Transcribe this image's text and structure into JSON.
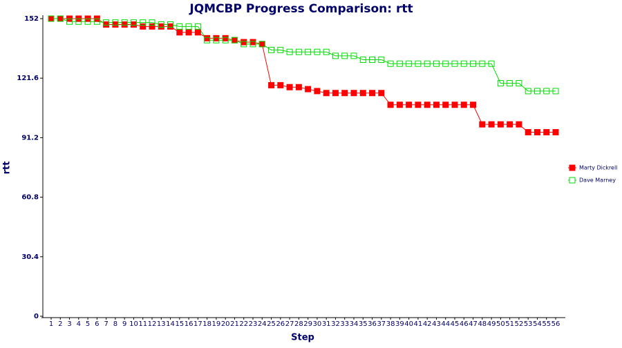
{
  "chart_data": {
    "type": "line",
    "title": "JQMCBP Progress Comparison: rtt",
    "xlabel": "Step",
    "ylabel": "rtt",
    "categories": [
      "1",
      "2",
      "3",
      "4",
      "5",
      "6",
      "7",
      "8",
      "9",
      "10",
      "11",
      "12",
      "13",
      "14",
      "15",
      "16",
      "17",
      "18",
      "19",
      "20",
      "21",
      "22",
      "23",
      "24",
      "25",
      "26",
      "27",
      "28",
      "29",
      "30",
      "31",
      "32",
      "33",
      "34",
      "35",
      "36",
      "37",
      "38",
      "39",
      "40",
      "41",
      "42",
      "43",
      "44",
      "45",
      "46",
      "47",
      "48",
      "49",
      "50",
      "51",
      "52",
      "53",
      "54",
      "55",
      "56"
    ],
    "series": [
      {
        "name": "Marty Dickrell",
        "color": "#ff0000",
        "filled": true,
        "values": [
          152,
          152,
          152,
          152,
          152,
          152,
          149,
          149,
          149,
          149,
          148,
          148,
          148,
          148,
          145,
          145,
          145,
          142,
          142,
          142,
          141,
          140,
          140,
          139,
          118,
          118,
          117,
          117,
          116,
          115,
          114,
          114,
          114,
          114,
          114,
          114,
          114,
          108,
          108,
          108,
          108,
          108,
          108,
          108,
          108,
          108,
          108,
          98,
          98,
          98,
          98,
          98,
          94,
          94,
          94,
          94
        ]
      },
      {
        "name": "Dave Marney",
        "color": "#00dd00",
        "filled": false,
        "values": [
          152,
          152,
          150.5,
          150.5,
          150.5,
          150.5,
          150,
          150,
          150,
          150,
          150,
          150,
          149,
          149,
          148,
          148,
          148,
          141,
          141,
          141,
          141,
          139,
          139,
          139,
          136,
          136,
          135,
          135,
          135,
          135,
          135,
          133,
          133,
          133,
          131,
          131,
          131,
          129,
          129,
          129,
          129,
          129,
          129,
          129,
          129,
          129,
          129,
          129,
          129,
          119,
          119,
          119,
          115,
          115,
          115,
          115
        ]
      }
    ],
    "ylim": [
      0,
      152
    ],
    "yticks": [
      0,
      30.4,
      60.8,
      91.2,
      121.6,
      152
    ],
    "legend": "right"
  }
}
